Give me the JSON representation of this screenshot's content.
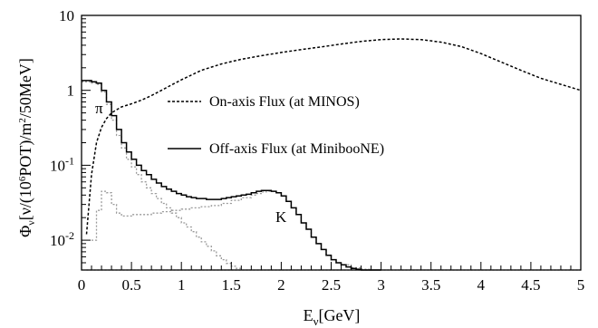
{
  "chart_data": {
    "type": "line",
    "title": "",
    "xlabel": "E",
    "xlabel_sub": "ν",
    "xlabel_rest": "[GeV]",
    "ylabel": "Φ_ν[ν/(10^6POT)/m^2/50MeV]",
    "ylabel_parts": {
      "phi": "Φ",
      "phi_sub": "ν",
      "open": "[ν/(10",
      "exp6": "6",
      "pot": "POT)/m",
      "exp2": "2",
      "tail": "/50MeV]"
    },
    "x_scale": "linear",
    "y_scale": "log",
    "xlim": [
      0,
      5
    ],
    "ylim": [
      0.004,
      10
    ],
    "x_ticks": [
      0,
      0.5,
      1,
      1.5,
      2,
      2.5,
      3,
      3.5,
      4,
      4.5,
      5
    ],
    "x_tick_labels": [
      "0",
      "0.5",
      "1",
      "1.5",
      "2",
      "2.5",
      "3",
      "3.5",
      "4",
      "4.5",
      "5"
    ],
    "y_ticks": [
      {
        "value": 10,
        "base": "10",
        "exp": ""
      },
      {
        "value": 1,
        "base": "1",
        "exp": ""
      },
      {
        "value": 0.1,
        "base": "10",
        "exp": "-1"
      },
      {
        "value": 0.01,
        "base": "10",
        "exp": "-2"
      }
    ],
    "legend": {
      "placement": "center-right",
      "entries": [
        {
          "label": "On-axis Flux (at MINOS)",
          "style": "dashed"
        },
        {
          "label": "Off-axis Flux (at MinibooNE)",
          "style": "solid"
        }
      ]
    },
    "annotations": [
      {
        "text": "π",
        "x": 0.2,
        "y": 0.55
      },
      {
        "text": "K",
        "x": 1.92,
        "y": 0.019
      }
    ],
    "series": [
      {
        "name": "On-axis Flux (at MINOS)",
        "style": "dashed",
        "color": "#000000",
        "x": [
          0.05,
          0.1,
          0.15,
          0.2,
          0.25,
          0.3,
          0.35,
          0.4,
          0.5,
          0.6,
          0.7,
          0.8,
          0.9,
          1.0,
          1.2,
          1.4,
          1.6,
          1.8,
          2.0,
          2.2,
          2.4,
          2.6,
          2.8,
          3.0,
          3.2,
          3.4,
          3.6,
          3.8,
          4.0,
          4.2,
          4.4,
          4.6,
          4.8,
          5.0
        ],
        "y": [
          0.012,
          0.075,
          0.2,
          0.32,
          0.42,
          0.5,
          0.55,
          0.6,
          0.66,
          0.74,
          0.85,
          1.0,
          1.18,
          1.38,
          1.85,
          2.25,
          2.6,
          2.9,
          3.2,
          3.5,
          3.8,
          4.15,
          4.5,
          4.75,
          4.85,
          4.75,
          4.4,
          3.85,
          3.1,
          2.4,
          1.85,
          1.45,
          1.2,
          1.0
        ]
      },
      {
        "name": "Off-axis Flux (at MiniboooNE) total",
        "legend_name": "Off-axis Flux (at MiniboooNE)",
        "style": "solid",
        "color": "#000000",
        "x": [
          0.0,
          0.05,
          0.1,
          0.15,
          0.2,
          0.25,
          0.3,
          0.35,
          0.4,
          0.45,
          0.5,
          0.55,
          0.6,
          0.65,
          0.7,
          0.75,
          0.8,
          0.85,
          0.9,
          0.95,
          1.0,
          1.05,
          1.1,
          1.15,
          1.2,
          1.25,
          1.3,
          1.35,
          1.4,
          1.45,
          1.5,
          1.55,
          1.6,
          1.65,
          1.7,
          1.75,
          1.8,
          1.85,
          1.9,
          1.95,
          2.0,
          2.05,
          2.1,
          2.15,
          2.2,
          2.25,
          2.3,
          2.35,
          2.4,
          2.45,
          2.5,
          2.55,
          2.6,
          2.65,
          2.7,
          2.75,
          2.8,
          2.85,
          2.9,
          2.95,
          3.0
        ],
        "y": [
          1.35,
          1.35,
          1.3,
          1.25,
          1.0,
          0.7,
          0.46,
          0.3,
          0.2,
          0.15,
          0.12,
          0.1,
          0.085,
          0.075,
          0.065,
          0.058,
          0.052,
          0.048,
          0.045,
          0.042,
          0.04,
          0.038,
          0.037,
          0.036,
          0.036,
          0.035,
          0.035,
          0.035,
          0.036,
          0.037,
          0.038,
          0.039,
          0.04,
          0.041,
          0.043,
          0.045,
          0.046,
          0.046,
          0.045,
          0.043,
          0.039,
          0.033,
          0.027,
          0.022,
          0.017,
          0.014,
          0.011,
          0.009,
          0.0075,
          0.0063,
          0.0055,
          0.005,
          0.0047,
          0.0044,
          0.0042,
          0.0041,
          0.004,
          0.004,
          0.004,
          0.004,
          0.004
        ]
      },
      {
        "name": "Off-axis pion component",
        "style": "dotted-gray",
        "color": "#999999",
        "x": [
          0.0,
          0.05,
          0.1,
          0.15,
          0.2,
          0.25,
          0.3,
          0.35,
          0.4,
          0.45,
          0.5,
          0.55,
          0.6,
          0.65,
          0.7,
          0.75,
          0.8,
          0.85,
          0.9,
          0.95,
          1.0,
          1.05,
          1.1,
          1.15,
          1.2,
          1.25,
          1.3,
          1.35,
          1.4,
          1.45,
          1.5,
          1.55,
          1.6
        ],
        "y": [
          1.3,
          1.3,
          1.25,
          1.2,
          0.95,
          0.65,
          0.4,
          0.25,
          0.17,
          0.12,
          0.095,
          0.075,
          0.06,
          0.05,
          0.042,
          0.036,
          0.031,
          0.027,
          0.023,
          0.02,
          0.017,
          0.015,
          0.013,
          0.011,
          0.0095,
          0.0083,
          0.0072,
          0.0062,
          0.0055,
          0.0049,
          0.0045,
          0.0042,
          0.004
        ]
      },
      {
        "name": "Off-axis kaon component",
        "style": "dotted-gray",
        "color": "#999999",
        "x": [
          0.1,
          0.15,
          0.2,
          0.25,
          0.3,
          0.35,
          0.4,
          0.45,
          0.5,
          0.6,
          0.7,
          0.8,
          0.9,
          1.0,
          1.1,
          1.2,
          1.3,
          1.4,
          1.5,
          1.6,
          1.7,
          1.75,
          1.8,
          1.85,
          1.9,
          1.95,
          2.0,
          2.05,
          2.1,
          2.15,
          2.2,
          2.25,
          2.3,
          2.35,
          2.4,
          2.45,
          2.5,
          2.55,
          2.6,
          2.7,
          2.8,
          2.9,
          3.0
        ],
        "y": [
          0.01,
          0.025,
          0.045,
          0.043,
          0.03,
          0.023,
          0.021,
          0.021,
          0.022,
          0.022,
          0.023,
          0.024,
          0.025,
          0.026,
          0.027,
          0.028,
          0.029,
          0.031,
          0.034,
          0.037,
          0.04,
          0.042,
          0.044,
          0.045,
          0.045,
          0.043,
          0.039,
          0.033,
          0.027,
          0.022,
          0.017,
          0.014,
          0.011,
          0.009,
          0.0075,
          0.0063,
          0.0055,
          0.005,
          0.0047,
          0.0043,
          0.0041,
          0.004,
          0.004
        ]
      },
      {
        "name": "Off-axis flux floor",
        "style": "dotted-gray",
        "color": "#999999",
        "x": [
          0.05,
          5.0
        ],
        "y": [
          0.004,
          0.004
        ]
      }
    ]
  }
}
